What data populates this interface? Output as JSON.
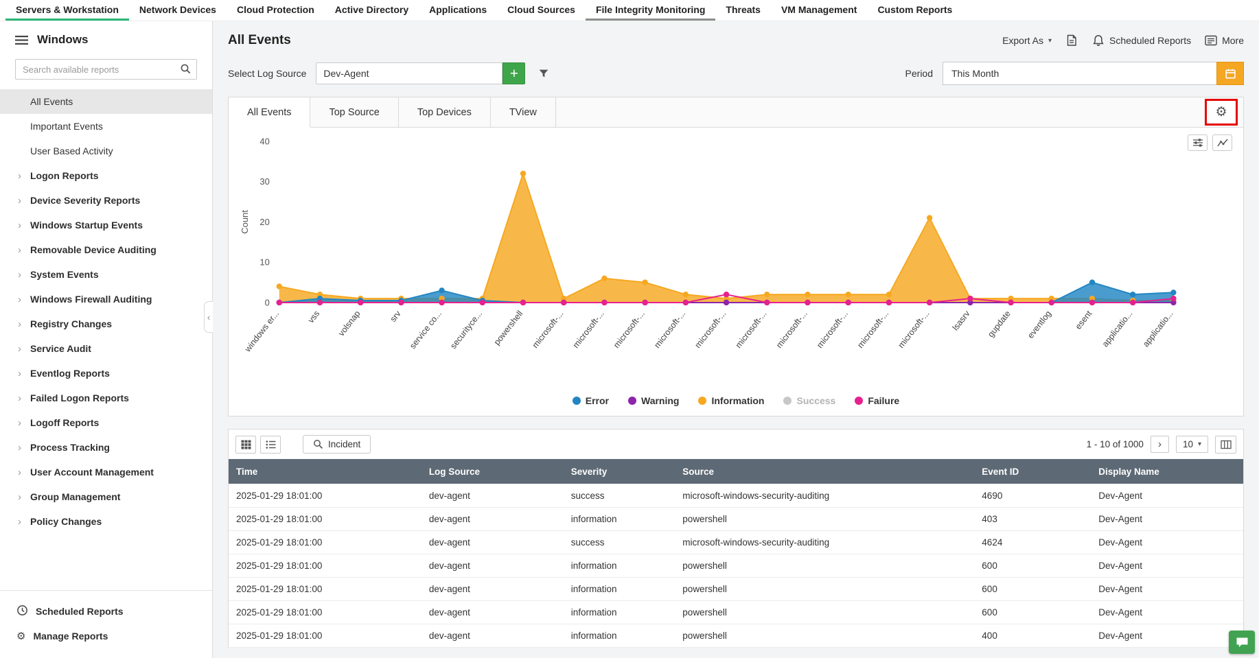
{
  "top_nav": {
    "items": [
      {
        "label": "Servers & Workstation",
        "state": "active"
      },
      {
        "label": "Network Devices",
        "state": "normal"
      },
      {
        "label": "Cloud Protection",
        "state": "normal"
      },
      {
        "label": "Active Directory",
        "state": "normal"
      },
      {
        "label": "Applications",
        "state": "normal"
      },
      {
        "label": "Cloud Sources",
        "state": "normal"
      },
      {
        "label": "File Integrity Monitoring",
        "state": "highlighted"
      },
      {
        "label": "Threats",
        "state": "normal"
      },
      {
        "label": "VM Management",
        "state": "normal"
      },
      {
        "label": "Custom Reports",
        "state": "normal"
      }
    ]
  },
  "sidebar": {
    "title": "Windows",
    "search_placeholder": "Search available reports",
    "items": [
      {
        "label": "All Events",
        "expandable": false,
        "selected": true
      },
      {
        "label": "Important Events",
        "expandable": false,
        "selected": false
      },
      {
        "label": "User Based Activity",
        "expandable": false,
        "selected": false
      },
      {
        "label": "Logon Reports",
        "expandable": true,
        "selected": false
      },
      {
        "label": "Device Severity Reports",
        "expandable": true,
        "selected": false
      },
      {
        "label": "Windows Startup Events",
        "expandable": true,
        "selected": false
      },
      {
        "label": "Removable Device Auditing",
        "expandable": true,
        "selected": false
      },
      {
        "label": "System Events",
        "expandable": true,
        "selected": false
      },
      {
        "label": "Windows Firewall Auditing",
        "expandable": true,
        "selected": false
      },
      {
        "label": "Registry Changes",
        "expandable": true,
        "selected": false
      },
      {
        "label": "Service Audit",
        "expandable": true,
        "selected": false
      },
      {
        "label": "Eventlog Reports",
        "expandable": true,
        "selected": false
      },
      {
        "label": "Failed Logon Reports",
        "expandable": true,
        "selected": false
      },
      {
        "label": "Logoff Reports",
        "expandable": true,
        "selected": false
      },
      {
        "label": "Process Tracking",
        "expandable": true,
        "selected": false
      },
      {
        "label": "User Account Management",
        "expandable": true,
        "selected": false
      },
      {
        "label": "Group Management",
        "expandable": true,
        "selected": false
      },
      {
        "label": "Policy Changes",
        "expandable": true,
        "selected": false
      }
    ],
    "footer_items": [
      {
        "label": "Scheduled Reports",
        "icon": "clock-icon"
      },
      {
        "label": "Manage Reports",
        "icon": "gear-icon"
      }
    ]
  },
  "header": {
    "title": "All Events",
    "export_label": "Export As",
    "scheduled_label": "Scheduled Reports",
    "more_label": "More"
  },
  "filters": {
    "log_source_label": "Select Log Source",
    "log_source_value": "Dev-Agent",
    "period_label": "Period",
    "period_value": "This Month"
  },
  "tabs": [
    {
      "label": "All Events",
      "active": true
    },
    {
      "label": "Top Source",
      "active": false
    },
    {
      "label": "Top Devices",
      "active": false
    },
    {
      "label": "TView",
      "active": false
    }
  ],
  "chart_data": {
    "type": "area",
    "title": "",
    "xlabel": "",
    "ylabel": "Count",
    "ylim": [
      0,
      40
    ],
    "yticks": [
      0,
      10,
      20,
      30,
      40
    ],
    "grid": false,
    "legend_position": "bottom",
    "categories": [
      "windows er...",
      "vss",
      "volsnap",
      "srv",
      "service co...",
      "securityce...",
      "powershell",
      "microsoft-...",
      "microsoft-...",
      "microsoft-...",
      "microsoft-...",
      "microsoft-...",
      "microsoft-...",
      "microsoft-...",
      "microsoft-...",
      "microsoft-...",
      "microsoft-...",
      "lsasrv",
      "gupdate",
      "eventlog",
      "esent",
      "applicatio...",
      "applicatio..."
    ],
    "series": [
      {
        "name": "Error",
        "color": "#2286c3",
        "style": "area",
        "disabled": false,
        "values": [
          0,
          1,
          0.5,
          0.5,
          3,
          0.5,
          0,
          0,
          0,
          0,
          0,
          0,
          0,
          0,
          0,
          0,
          0,
          0,
          0,
          0,
          5,
          2,
          2.5
        ]
      },
      {
        "name": "Warning",
        "color": "#8e24aa",
        "style": "line",
        "disabled": false,
        "values": [
          0,
          0,
          0,
          0,
          0,
          0,
          0,
          0,
          0,
          0,
          0,
          0,
          0,
          0,
          0,
          0,
          0,
          0,
          0,
          0,
          0,
          0,
          0
        ]
      },
      {
        "name": "Information",
        "color": "#f6a821",
        "style": "area",
        "disabled": false,
        "values": [
          4,
          2,
          1,
          1,
          1,
          1,
          32,
          1,
          6,
          5,
          2,
          1,
          2,
          2,
          2,
          2,
          21,
          1,
          1,
          1,
          1,
          0.5,
          0.5
        ]
      },
      {
        "name": "Success",
        "color": "#c7c7c7",
        "style": "line",
        "disabled": true,
        "values": [
          0,
          0,
          0,
          0,
          0,
          0,
          0,
          0,
          0,
          0,
          0,
          0,
          0,
          0,
          0,
          0,
          0,
          0,
          0,
          0,
          0,
          0,
          0
        ]
      },
      {
        "name": "Failure",
        "color": "#e6218f",
        "style": "line",
        "disabled": false,
        "values": [
          0,
          0,
          0,
          0,
          0,
          0,
          0,
          0,
          0,
          0,
          0,
          2,
          0,
          0,
          0,
          0,
          0,
          1,
          0,
          0,
          0,
          0,
          1
        ]
      }
    ]
  },
  "table_toolbar": {
    "incident_label": "Incident",
    "pagination_text": "1 - 10 of 1000",
    "page_size": "10"
  },
  "table": {
    "columns": [
      "Time",
      "Log Source",
      "Severity",
      "Source",
      "Event ID",
      "Display Name"
    ],
    "rows": [
      [
        "2025-01-29 18:01:00",
        "dev-agent",
        "success",
        "microsoft-windows-security-auditing",
        "4690",
        "Dev-Agent"
      ],
      [
        "2025-01-29 18:01:00",
        "dev-agent",
        "information",
        "powershell",
        "403",
        "Dev-Agent"
      ],
      [
        "2025-01-29 18:01:00",
        "dev-agent",
        "success",
        "microsoft-windows-security-auditing",
        "4624",
        "Dev-Agent"
      ],
      [
        "2025-01-29 18:01:00",
        "dev-agent",
        "information",
        "powershell",
        "600",
        "Dev-Agent"
      ],
      [
        "2025-01-29 18:01:00",
        "dev-agent",
        "information",
        "powershell",
        "600",
        "Dev-Agent"
      ],
      [
        "2025-01-29 18:01:00",
        "dev-agent",
        "information",
        "powershell",
        "600",
        "Dev-Agent"
      ],
      [
        "2025-01-29 18:01:00",
        "dev-agent",
        "information",
        "powershell",
        "400",
        "Dev-Agent"
      ]
    ]
  },
  "colors": {
    "nav_active_green": "#2bb673",
    "accent_green": "#3fa54a",
    "calendar_orange": "#f5a623",
    "table_header_bg": "#5d6974",
    "highlight_red": "#e60000",
    "chat_green": "#41a351"
  }
}
